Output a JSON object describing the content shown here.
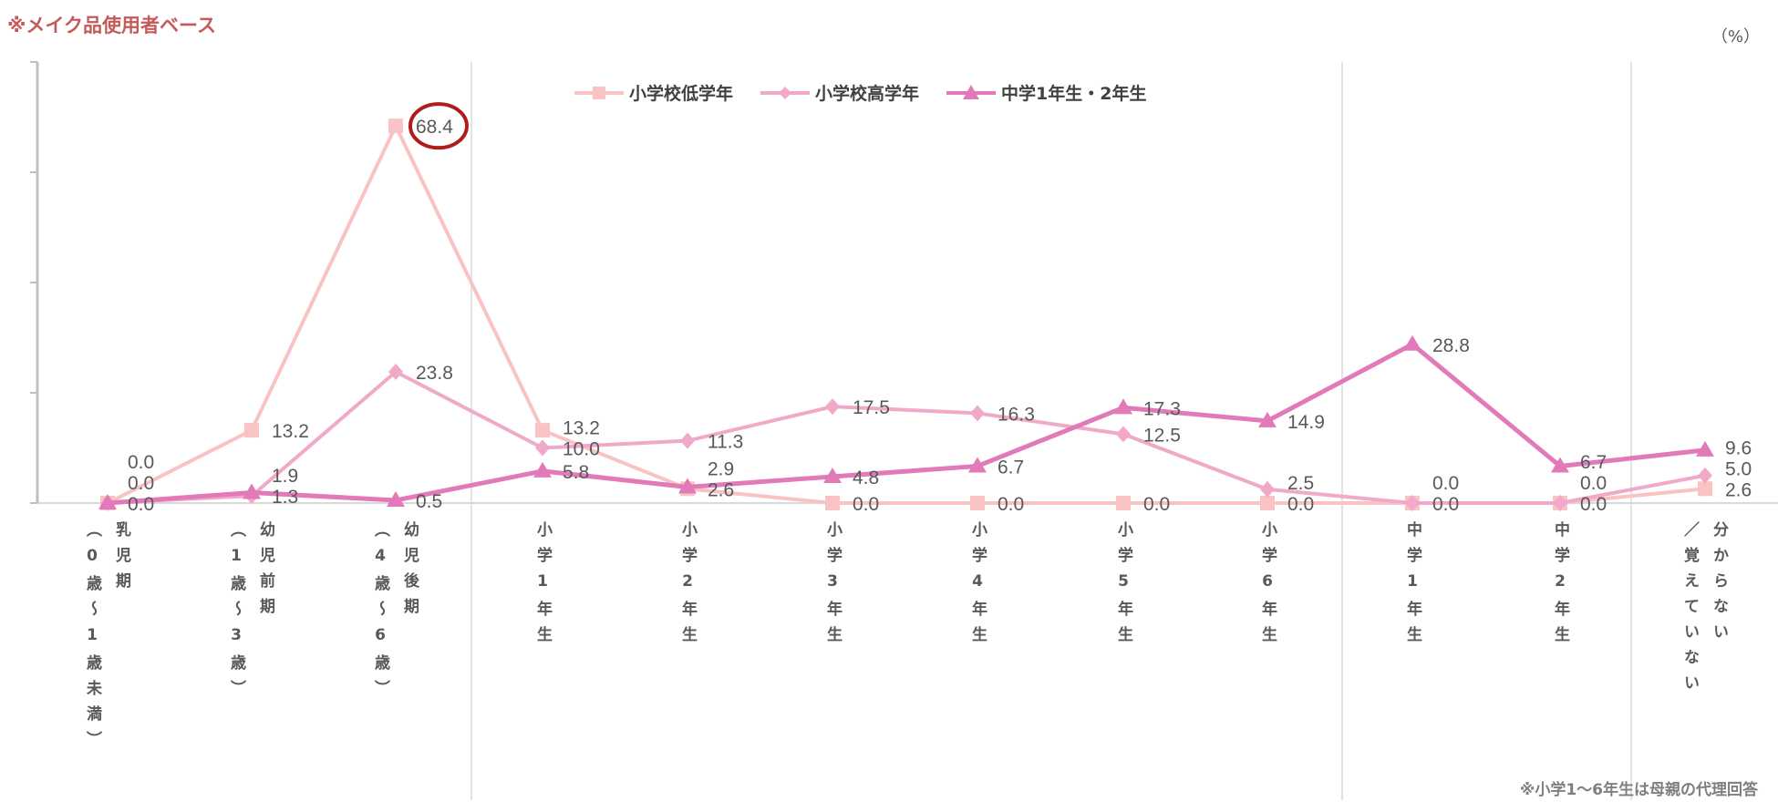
{
  "header": {
    "note": "※メイク品使用者ベース",
    "unit": "（%）"
  },
  "footer": {
    "note": "※小学1～6年生は母親の代理回答"
  },
  "chart_data": {
    "type": "line",
    "categories": [
      {
        "main": "乳児期",
        "sub": "（0歳～1歳未満）"
      },
      {
        "main": "幼児前期",
        "sub": "（1歳～3歳）"
      },
      {
        "main": "幼児後期",
        "sub": "（4歳～6歳）"
      },
      {
        "main": "小学1年生",
        "sub": ""
      },
      {
        "main": "小学2年生",
        "sub": ""
      },
      {
        "main": "小学3年生",
        "sub": ""
      },
      {
        "main": "小学4年生",
        "sub": ""
      },
      {
        "main": "小学5年生",
        "sub": ""
      },
      {
        "main": "小学6年生",
        "sub": ""
      },
      {
        "main": "中学1年生",
        "sub": ""
      },
      {
        "main": "中学2年生",
        "sub": ""
      },
      {
        "main": "分からない",
        "sub": "／覚えていない"
      }
    ],
    "series": [
      {
        "name": "小学校低学年",
        "marker": "square",
        "color": "#f9c3c3",
        "values": [
          0.0,
          13.2,
          68.4,
          13.2,
          2.6,
          0.0,
          0.0,
          0.0,
          0.0,
          0.0,
          0.0,
          2.6
        ]
      },
      {
        "name": "小学校高学年",
        "marker": "diamond",
        "color": "#f1a9c9",
        "values": [
          0.0,
          1.3,
          23.8,
          10.0,
          11.3,
          17.5,
          16.3,
          12.5,
          2.5,
          0.0,
          0.0,
          5.0
        ]
      },
      {
        "name": "中学1年生・2年生",
        "marker": "triangle",
        "color": "#e27ab9",
        "values": [
          0.0,
          1.9,
          0.5,
          5.8,
          2.9,
          4.8,
          6.7,
          17.3,
          14.9,
          28.8,
          6.7,
          9.6
        ]
      }
    ],
    "ylim": [
      0,
      80
    ],
    "yticks": [
      0,
      20,
      40,
      60,
      80
    ],
    "ytick_labels_shown": false,
    "grid": false,
    "group_separators_after": [
      2,
      8,
      10
    ],
    "highlight": {
      "series": 0,
      "index": 2,
      "color": "#b01c1c"
    },
    "legend": "top-center",
    "xlabel": "",
    "ylabel": ""
  }
}
